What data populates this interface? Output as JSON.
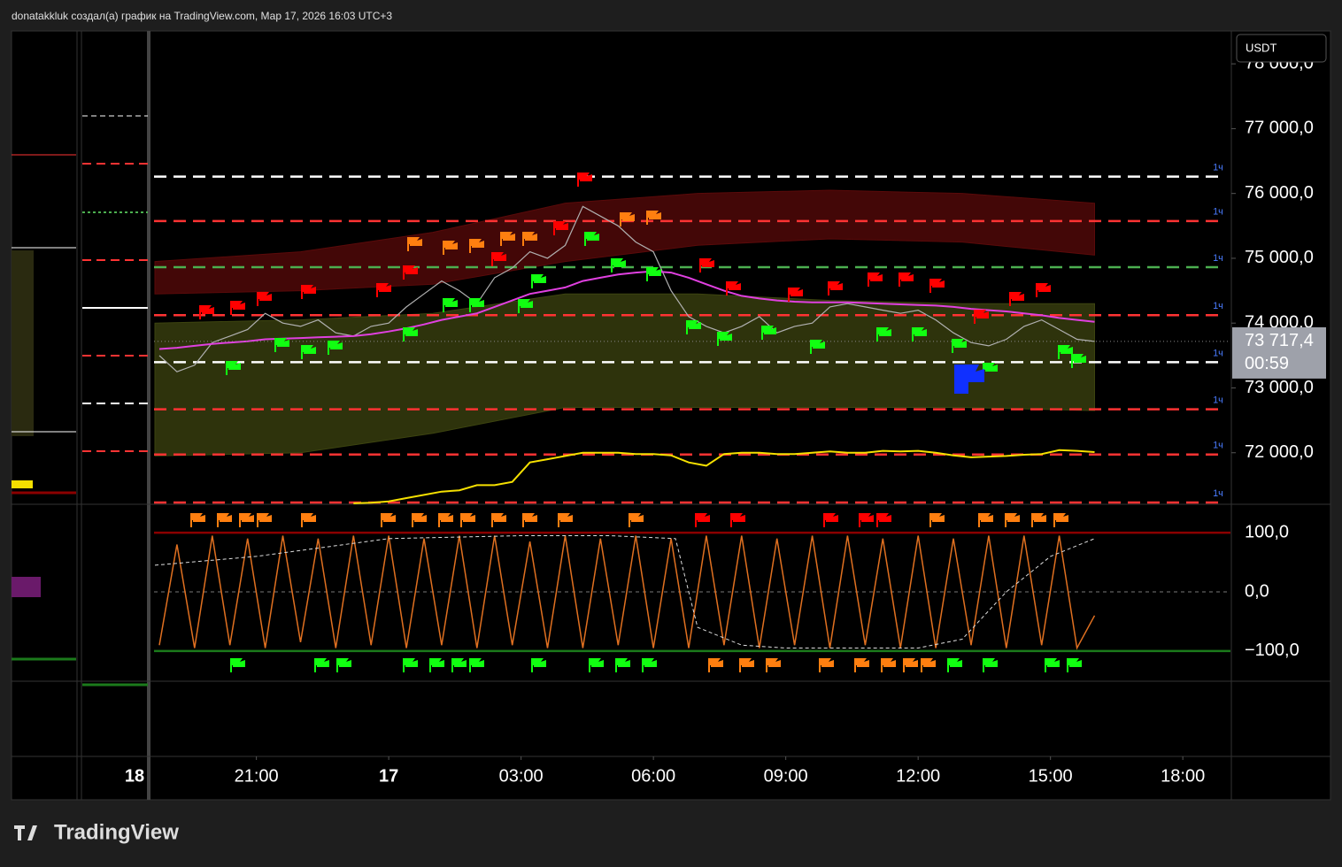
{
  "header": "donatakkluk создал(а) график на TradingView.com, Мар 17, 2026 16:03 UTC+3",
  "logo": "TradingView",
  "left_pane_label": "18",
  "chart_data": [
    {
      "type": "line",
      "currency": "USDT",
      "x": [
        -5.2,
        -4.8,
        -4.4,
        -4.0,
        -3.6,
        -3.2,
        -2.8,
        -2.4,
        -2.0,
        -1.6,
        -1.2,
        -0.8,
        -0.4,
        0,
        0.4,
        0.8,
        1.2,
        1.6,
        2.0,
        2.4,
        2.8,
        3.2,
        3.6,
        4.0,
        4.4,
        4.8,
        5.2,
        5.6,
        6.0,
        6.4,
        6.8,
        7.2,
        7.6,
        8.0,
        8.4,
        8.8,
        9.2,
        9.6,
        10.0,
        10.4,
        10.8,
        11.2,
        11.6,
        12.0,
        12.4,
        12.8,
        13.2,
        13.6,
        14.0,
        14.4,
        14.8,
        15.2,
        15.6,
        16.0
      ],
      "xlim": [
        -5.32,
        19.08
      ],
      "xticks": [
        {
          "value": -3,
          "label": "21:00"
        },
        {
          "value": 0,
          "label": "17"
        },
        {
          "value": 3,
          "label": "03:00"
        },
        {
          "value": 6,
          "label": "06:00"
        },
        {
          "value": 9,
          "label": "09:00"
        },
        {
          "value": 12,
          "label": "12:00"
        },
        {
          "value": 15,
          "label": "15:00"
        },
        {
          "value": 18,
          "label": "18:00"
        }
      ],
      "ylim": [
        71205,
        78507
      ],
      "yticks": [
        {
          "value": 78000,
          "label": "78 000,0"
        },
        {
          "value": 77000,
          "label": "77 000,0"
        },
        {
          "value": 76000,
          "label": "76 000,0"
        },
        {
          "value": 75000,
          "label": "75 000,0"
        },
        {
          "value": 74000,
          "label": "74 000,0"
        },
        {
          "value": 73000,
          "label": "73 000,0"
        },
        {
          "value": 72000,
          "label": "72 000,0"
        }
      ],
      "series": [
        {
          "name": "price",
          "color": "#b0b0b0",
          "values": [
            73500,
            73250,
            73350,
            73700,
            73800,
            73900,
            74150,
            74000,
            73950,
            74050,
            73850,
            73800,
            73950,
            74000,
            74250,
            74450,
            74650,
            74500,
            74300,
            74700,
            74850,
            75100,
            75000,
            75200,
            75800,
            75650,
            75500,
            75250,
            75100,
            74500,
            74100,
            73950,
            73850,
            73950,
            74100,
            73850,
            73950,
            74000,
            74250,
            74300,
            74250,
            74200,
            74150,
            74200,
            74050,
            73850,
            73700,
            73650,
            73750,
            73950,
            74050,
            73900,
            73750,
            73717.4
          ]
        },
        {
          "name": "average",
          "color": "#e040e0",
          "values": [
            73600,
            73620,
            73650,
            73680,
            73700,
            73720,
            73750,
            73760,
            73770,
            73780,
            73790,
            73800,
            73830,
            73870,
            73920,
            73980,
            74050,
            74100,
            74150,
            74250,
            74350,
            74450,
            74500,
            74550,
            74650,
            74700,
            74750,
            74780,
            74800,
            74780,
            74700,
            74600,
            74500,
            74420,
            74380,
            74350,
            74330,
            74320,
            74320,
            74320,
            74310,
            74300,
            74290,
            74280,
            74270,
            74250,
            74220,
            74200,
            74180,
            74150,
            74120,
            74080,
            74050,
            74020
          ]
        },
        {
          "name": "vwap",
          "color": "#f5e000",
          "values": [
            null,
            null,
            null,
            null,
            null,
            null,
            null,
            null,
            null,
            null,
            null,
            71220,
            71230,
            71250,
            71300,
            71350,
            71400,
            71420,
            71500,
            71500,
            71550,
            71850,
            71900,
            71950,
            72000,
            72000,
            72000,
            71980,
            71980,
            71960,
            71850,
            71800,
            71980,
            72000,
            72000,
            71980,
            71980,
            72000,
            72020,
            72000,
            72000,
            72030,
            72020,
            72030,
            72000,
            71960,
            71930,
            71940,
            71950,
            71970,
            71980,
            72040,
            72030,
            72010
          ]
        }
      ],
      "bands": {
        "x": [
          -5.3,
          -2,
          1,
          4,
          7,
          10,
          13,
          16
        ],
        "items": [
          {
            "color": "#5a0a0a",
            "upper": [
              74950,
              75100,
              75400,
              75850,
              76000,
              76050,
              76000,
              75850
            ],
            "lower": [
              74450,
              74500,
              74600,
              74950,
              75200,
              75300,
              75250,
              75050
            ]
          },
          {
            "color": "#3d4410",
            "upper": [
              74000,
              74050,
              74150,
              74450,
              74450,
              74350,
              74300,
              74300
            ],
            "lower": [
              71950,
              72000,
              72300,
              72700,
              72700,
              72700,
              72700,
              72650
            ]
          }
        ]
      },
      "levels": [
        {
          "price": 76260,
          "label": "1ч",
          "color": "#ffffff"
        },
        {
          "price": 75575,
          "label": "1ч",
          "color": "#ff3333"
        },
        {
          "price": 74863,
          "label": "1ч",
          "color": "#4caf50"
        },
        {
          "price": 74123,
          "label": "1ч",
          "color": "#ff3333"
        },
        {
          "price": 73397,
          "label": "1ч",
          "color": "#ffffff"
        },
        {
          "price": 72671,
          "label": "1ч",
          "color": "#ff3333"
        },
        {
          "price": 71973,
          "label": "1ч",
          "color": "#ff3333"
        },
        {
          "price": 71233,
          "label": "1ч",
          "color": "#ff3333"
        }
      ],
      "last_price": {
        "value": 73717.4,
        "label": "73 717,4"
      },
      "timer": "00:59"
    },
    {
      "type": "line",
      "ylim": [
        -151,
        148
      ],
      "yticks": [
        {
          "value": 100,
          "label": "100,0"
        },
        {
          "value": 0,
          "label": "0,0"
        },
        {
          "value": -100,
          "label": "−100,0"
        }
      ],
      "level_colors": [
        "#8b0000",
        "#777777",
        "#1b7a1b"
      ],
      "series": [
        {
          "name": "oscillator",
          "color": "#e07020",
          "values": [
            -90,
            80,
            -95,
            95,
            -90,
            90,
            -95,
            95,
            -85,
            90,
            -95,
            95,
            -90,
            95,
            -95,
            90,
            -90,
            95,
            -95,
            95,
            -90,
            85,
            -95,
            95,
            -95,
            90,
            -90,
            95,
            -95,
            90,
            -95,
            95,
            -90,
            95,
            -95,
            90,
            -90,
            95,
            -95,
            95,
            -90,
            90,
            -95,
            95,
            -95,
            90,
            -90,
            95,
            -95,
            95,
            -90,
            95,
            -95,
            -40
          ]
        }
      ],
      "trend": {
        "x": [
          -5.3,
          -3,
          0,
          3,
          5,
          6.5,
          7,
          8,
          9,
          10,
          11,
          12,
          13,
          14,
          15,
          16
        ],
        "color": "#dddddd",
        "values": [
          45,
          60,
          90,
          95,
          95,
          90,
          -60,
          -90,
          -95,
          -95,
          -95,
          -95,
          -80,
          0,
          60,
          90
        ]
      }
    }
  ]
}
